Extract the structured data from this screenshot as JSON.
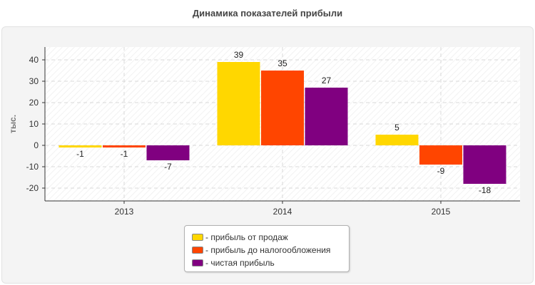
{
  "chart_data": {
    "type": "bar",
    "title": "Динамика показателей прибыли",
    "ylabel": "тыс.",
    "xlabel": "",
    "categories": [
      "2013",
      "2014",
      "2015"
    ],
    "yticks": [
      40,
      30,
      20,
      10,
      0,
      -10,
      -20
    ],
    "ylim": [
      -26,
      46
    ],
    "grid": true,
    "legend_position": "bottom",
    "series": [
      {
        "name": "- прибыль от продаж",
        "color": "#FFD700",
        "values": [
          -1,
          39,
          5
        ]
      },
      {
        "name": "- прибыль до налогообложения",
        "color": "#FF4500",
        "values": [
          -1,
          35,
          -9
        ]
      },
      {
        "name": "- чистая прибыль",
        "color": "#800080",
        "values": [
          -7,
          27,
          -18
        ]
      }
    ]
  }
}
